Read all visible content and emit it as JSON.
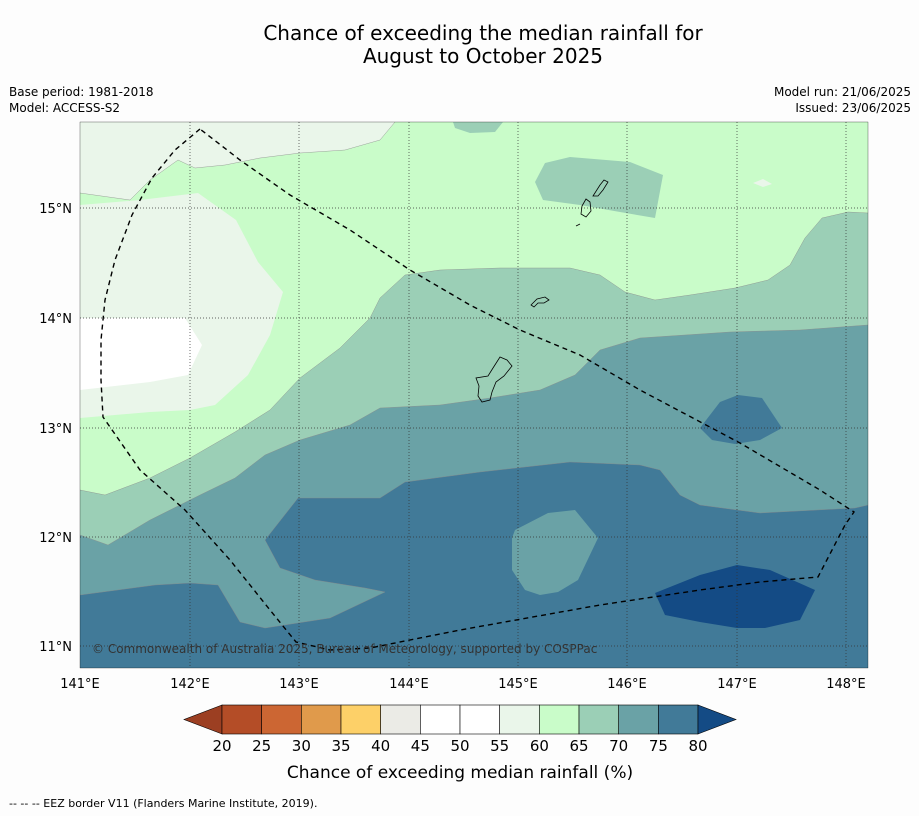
{
  "title_line1": "Chance of exceeding the median rainfall for",
  "title_line2": "August to October 2025",
  "base_period": "Base period: 1981-2018",
  "model": "Model: ACCESS-S2",
  "model_run": "Model run: 21/06/2025",
  "issued": "Issued: 23/06/2025",
  "copyright": "© Commonwealth of Australia 2025, Bureau of Meteorology, supported by COSPPac",
  "lon_ticks": [
    "141°E",
    "142°E",
    "143°E",
    "144°E",
    "145°E",
    "146°E",
    "147°E",
    "148°E"
  ],
  "lat_ticks": [
    "15°N",
    "14°N",
    "13°N",
    "12°N",
    "11°N"
  ],
  "colorbar": {
    "labels": [
      "20",
      "25",
      "30",
      "35",
      "40",
      "45",
      "50",
      "55",
      "60",
      "65",
      "70",
      "75",
      "80"
    ],
    "colors": [
      "#b44d27",
      "#cc6633",
      "#e09a4b",
      "#fdd068",
      "#ebebe6",
      "#ffffff",
      "#ffffff",
      "#eaf6ea",
      "#c9fcc9",
      "#9bcfb6",
      "#6aa2a6",
      "#417a98"
    ],
    "under_color": "#9c3f22",
    "over_color": "#144b85",
    "title": "Chance of exceeding median rainfall (%)"
  },
  "eez_note": "--  --  -- EEZ border V11 (Flanders Marine Institute, 2019)."
}
